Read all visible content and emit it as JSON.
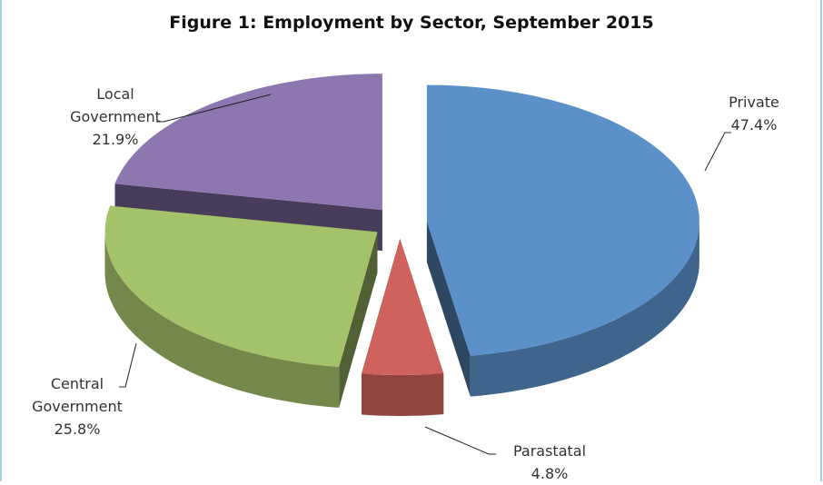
{
  "chart_data": {
    "type": "pie",
    "title": "Figure 1: Employment by Sector, September 2015",
    "categories": [
      "Private",
      "Parastatal",
      "Central Government",
      "Local Government"
    ],
    "values": [
      47.4,
      4.8,
      25.8,
      21.9
    ],
    "value_labels": [
      "47.4%",
      "4.8%",
      "25.8%",
      "21.9%"
    ],
    "colors": [
      "#5b90c8",
      "#cf625c",
      "#a4c26a",
      "#8d77b1"
    ]
  }
}
